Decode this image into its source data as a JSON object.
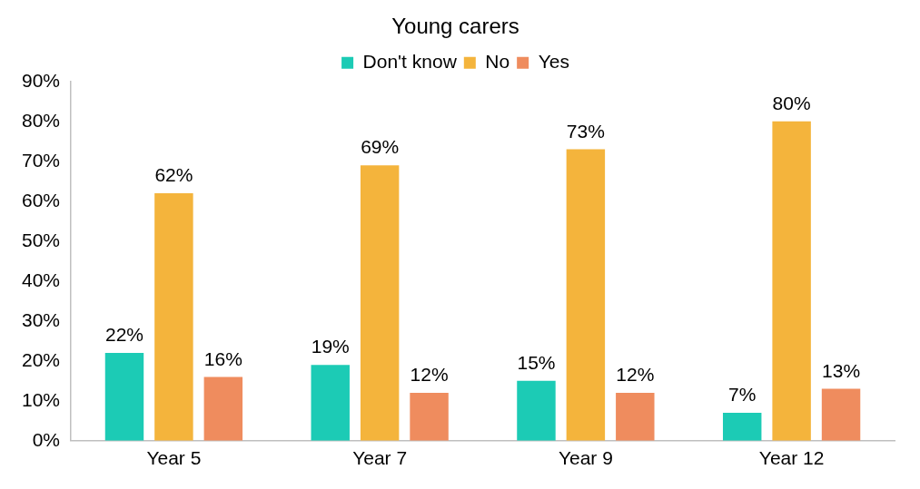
{
  "chart_data": {
    "type": "bar",
    "title": "Young carers",
    "categories": [
      "Year 5",
      "Year 7",
      "Year 9",
      "Year 12"
    ],
    "series": [
      {
        "name": "Don't know",
        "color": "#1ccbb5",
        "values": [
          22,
          19,
          15,
          7
        ],
        "value_labels": [
          "22%",
          "19%",
          "15%",
          "7%"
        ]
      },
      {
        "name": "No",
        "color": "#f4b43c",
        "values": [
          62,
          69,
          73,
          80
        ],
        "value_labels": [
          "62%",
          "69%",
          "73%",
          "80%"
        ]
      },
      {
        "name": "Yes",
        "color": "#ef8c5e",
        "values": [
          16,
          12,
          12,
          13
        ],
        "value_labels": [
          "16%",
          "12%",
          "12%",
          "13%"
        ]
      }
    ],
    "ylim": [
      0,
      90
    ],
    "yticks": [
      {
        "value": 0,
        "label": "0%"
      },
      {
        "value": 10,
        "label": "10%"
      },
      {
        "value": 20,
        "label": "20%"
      },
      {
        "value": 30,
        "label": "30%"
      },
      {
        "value": 40,
        "label": "40%"
      },
      {
        "value": 50,
        "label": "50%"
      },
      {
        "value": 60,
        "label": "60%"
      },
      {
        "value": 70,
        "label": "70%"
      },
      {
        "value": 80,
        "label": "80%"
      },
      {
        "value": 90,
        "label": "90%"
      }
    ],
    "grid": false,
    "legend": "top"
  }
}
